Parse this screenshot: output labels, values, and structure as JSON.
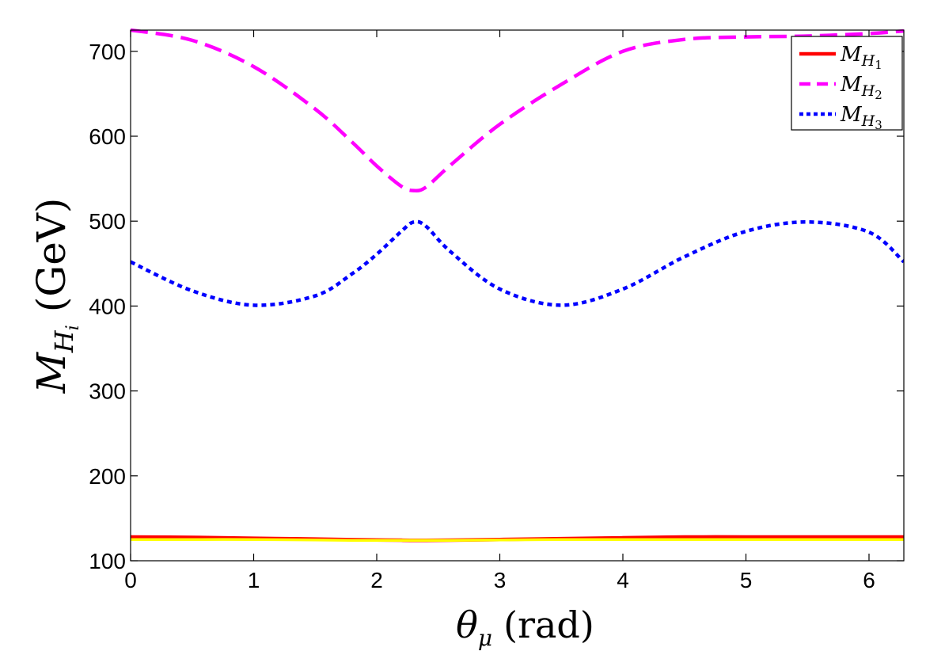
{
  "chart_data": {
    "type": "line",
    "xlabel": "θμ (rad)",
    "xlabel_parts": {
      "symbol": "θ",
      "subscript": "μ",
      "unit": "(rad)"
    },
    "ylabel": "MHi (GeV)",
    "ylabel_parts": {
      "symbol": "M",
      "sub1": "H",
      "sub2": "i",
      "unit": "(GeV)"
    },
    "xlim": [
      0,
      6.283
    ],
    "ylim": [
      100,
      725
    ],
    "xticks": [
      0,
      1,
      2,
      3,
      4,
      5,
      6
    ],
    "xtick_labels": [
      "0",
      "1",
      "2",
      "3",
      "4",
      "5",
      "6"
    ],
    "yticks": [
      100,
      200,
      300,
      400,
      500,
      600,
      700
    ],
    "ytick_labels": [
      "100",
      "200",
      "300",
      "400",
      "500",
      "600",
      "700"
    ],
    "grid": false,
    "legend_position": "top-right",
    "x": [
      0,
      0.5,
      1.0,
      1.5,
      1.8,
      2.0,
      2.2,
      2.3,
      2.4,
      2.6,
      3.0,
      3.5,
      4.0,
      4.5,
      5.0,
      5.5,
      6.0,
      6.283
    ],
    "series": [
      {
        "name": "MH1",
        "legend_symbol": "M",
        "legend_sub": "H",
        "legend_subsub": "1",
        "color": "#ff0000",
        "dash": "solid",
        "values": [
          128,
          127.5,
          126.5,
          125.5,
          124.8,
          124.5,
          124.2,
          124,
          124,
          124.3,
          125,
          126,
          127,
          128,
          128,
          128,
          128,
          128
        ]
      },
      {
        "name": "MH2",
        "legend_symbol": "M",
        "legend_sub": "H",
        "legend_subsub": "2",
        "color": "#ff00ff",
        "dash": "dashed",
        "values": [
          725,
          713,
          682,
          632,
          593,
          565,
          541,
          536,
          540,
          566,
          614,
          661,
          700,
          714,
          717,
          718,
          721,
          724
        ]
      },
      {
        "name": "MH3",
        "legend_symbol": "M",
        "legend_sub": "H",
        "legend_subsub": "3",
        "color": "#0000ff",
        "dash": "dotted",
        "values": [
          452,
          418,
          401,
          412,
          438,
          461,
          488,
          499,
          494,
          464,
          420,
          401,
          420,
          458,
          488,
          499,
          487,
          452
        ]
      }
    ],
    "extra_line": {
      "color": "#ffff00",
      "values": [
        125,
        125,
        125,
        124.5,
        124,
        124,
        124,
        124,
        124,
        124,
        124.5,
        125,
        125,
        125,
        125,
        125,
        125,
        125
      ]
    }
  }
}
